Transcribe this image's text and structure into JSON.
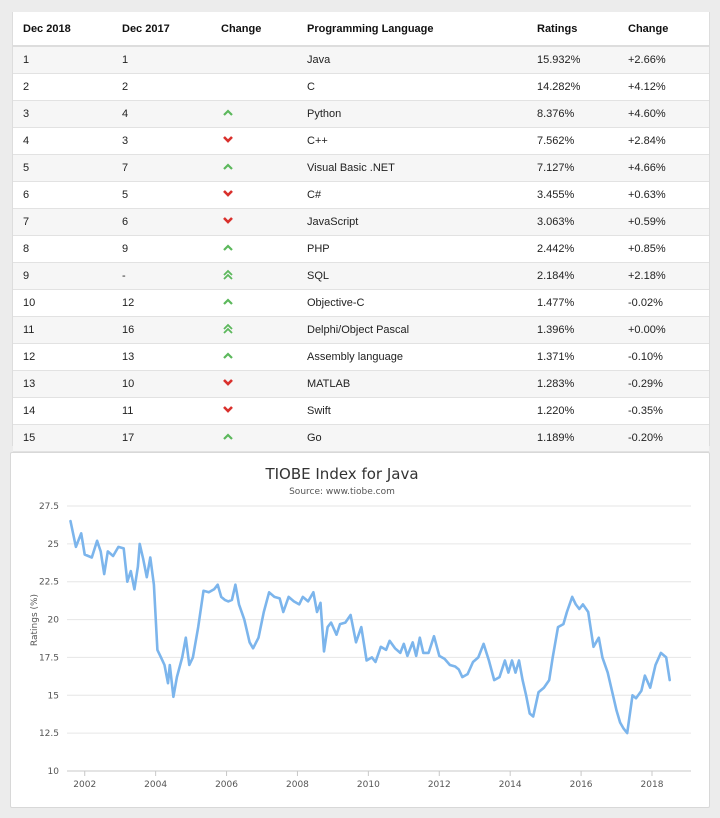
{
  "table": {
    "headers": [
      "Dec 2018",
      "Dec 2017",
      "Change",
      "Programming Language",
      "Ratings",
      "Change"
    ],
    "rows": [
      {
        "rank_2018": "1",
        "rank_2017": "1",
        "trend": "none",
        "language": "Java",
        "rating": "15.932%",
        "change": "+2.66%"
      },
      {
        "rank_2018": "2",
        "rank_2017": "2",
        "trend": "none",
        "language": "C",
        "rating": "14.282%",
        "change": "+4.12%"
      },
      {
        "rank_2018": "3",
        "rank_2017": "4",
        "trend": "up",
        "language": "Python",
        "rating": "8.376%",
        "change": "+4.60%"
      },
      {
        "rank_2018": "4",
        "rank_2017": "3",
        "trend": "down",
        "language": "C++",
        "rating": "7.562%",
        "change": "+2.84%"
      },
      {
        "rank_2018": "5",
        "rank_2017": "7",
        "trend": "up",
        "language": "Visual Basic .NET",
        "rating": "7.127%",
        "change": "+4.66%"
      },
      {
        "rank_2018": "6",
        "rank_2017": "5",
        "trend": "down",
        "language": "C#",
        "rating": "3.455%",
        "change": "+0.63%"
      },
      {
        "rank_2018": "7",
        "rank_2017": "6",
        "trend": "down",
        "language": "JavaScript",
        "rating": "3.063%",
        "change": "+0.59%"
      },
      {
        "rank_2018": "8",
        "rank_2017": "9",
        "trend": "up",
        "language": "PHP",
        "rating": "2.442%",
        "change": "+0.85%"
      },
      {
        "rank_2018": "9",
        "rank_2017": "-",
        "trend": "double-up",
        "language": "SQL",
        "rating": "2.184%",
        "change": "+2.18%"
      },
      {
        "rank_2018": "10",
        "rank_2017": "12",
        "trend": "up",
        "language": "Objective-C",
        "rating": "1.477%",
        "change": "-0.02%"
      },
      {
        "rank_2018": "11",
        "rank_2017": "16",
        "trend": "double-up",
        "language": "Delphi/Object Pascal",
        "rating": "1.396%",
        "change": "+0.00%"
      },
      {
        "rank_2018": "12",
        "rank_2017": "13",
        "trend": "up",
        "language": "Assembly language",
        "rating": "1.371%",
        "change": "-0.10%"
      },
      {
        "rank_2018": "13",
        "rank_2017": "10",
        "trend": "down",
        "language": "MATLAB",
        "rating": "1.283%",
        "change": "-0.29%"
      },
      {
        "rank_2018": "14",
        "rank_2017": "11",
        "trend": "down",
        "language": "Swift",
        "rating": "1.220%",
        "change": "-0.35%"
      },
      {
        "rank_2018": "15",
        "rank_2017": "17",
        "trend": "up",
        "language": "Go",
        "rating": "1.189%",
        "change": "-0.20%"
      }
    ]
  },
  "icons": {
    "up": "chevron-up-icon",
    "down": "chevron-down-icon",
    "double-up": "double-chevron-up-icon"
  },
  "colors": {
    "up": "#5cb85c",
    "down": "#d9302c",
    "line": "#7cb5ec"
  },
  "chart_data": {
    "type": "line",
    "title": "TIOBE Index for Java",
    "subtitle": "Source: www.tiobe.com",
    "xlabel": "",
    "ylabel": "Ratings (%)",
    "xlim": [
      2001.5,
      2019.1
    ],
    "ylim": [
      10,
      27.5
    ],
    "x_ticks": [
      "2002",
      "2004",
      "2006",
      "2008",
      "2010",
      "2012",
      "2014",
      "2016",
      "2018"
    ],
    "y_ticks": [
      "10",
      "12.5",
      "15",
      "17.5",
      "20",
      "22.5",
      "25",
      "27.5"
    ],
    "grid": true,
    "series": [
      {
        "name": "Java",
        "points": [
          [
            2001.6,
            26.5
          ],
          [
            2001.75,
            24.8
          ],
          [
            2001.9,
            25.7
          ],
          [
            2002.0,
            24.3
          ],
          [
            2002.2,
            24.1
          ],
          [
            2002.35,
            25.2
          ],
          [
            2002.45,
            24.5
          ],
          [
            2002.55,
            23.0
          ],
          [
            2002.65,
            24.5
          ],
          [
            2002.8,
            24.2
          ],
          [
            2002.95,
            24.8
          ],
          [
            2003.1,
            24.7
          ],
          [
            2003.2,
            22.5
          ],
          [
            2003.3,
            23.2
          ],
          [
            2003.4,
            22.0
          ],
          [
            2003.5,
            23.5
          ],
          [
            2003.55,
            25.0
          ],
          [
            2003.65,
            24.0
          ],
          [
            2003.75,
            22.8
          ],
          [
            2003.85,
            24.1
          ],
          [
            2003.95,
            22.3
          ],
          [
            2004.05,
            18.0
          ],
          [
            2004.15,
            17.5
          ],
          [
            2004.25,
            17.0
          ],
          [
            2004.35,
            15.8
          ],
          [
            2004.4,
            17.0
          ],
          [
            2004.5,
            14.9
          ],
          [
            2004.6,
            16.2
          ],
          [
            2004.75,
            17.5
          ],
          [
            2004.85,
            18.8
          ],
          [
            2004.95,
            17.0
          ],
          [
            2005.05,
            17.5
          ],
          [
            2005.2,
            19.5
          ],
          [
            2005.35,
            21.9
          ],
          [
            2005.5,
            21.8
          ],
          [
            2005.65,
            22.0
          ],
          [
            2005.75,
            22.3
          ],
          [
            2005.85,
            21.5
          ],
          [
            2005.95,
            21.3
          ],
          [
            2006.05,
            21.2
          ],
          [
            2006.15,
            21.3
          ],
          [
            2006.25,
            22.3
          ],
          [
            2006.35,
            21.0
          ],
          [
            2006.5,
            20.0
          ],
          [
            2006.65,
            18.5
          ],
          [
            2006.75,
            18.1
          ],
          [
            2006.9,
            18.8
          ],
          [
            2007.05,
            20.5
          ],
          [
            2007.2,
            21.8
          ],
          [
            2007.35,
            21.5
          ],
          [
            2007.5,
            21.4
          ],
          [
            2007.6,
            20.5
          ],
          [
            2007.75,
            21.5
          ],
          [
            2007.9,
            21.2
          ],
          [
            2008.05,
            21.0
          ],
          [
            2008.15,
            21.5
          ],
          [
            2008.3,
            21.2
          ],
          [
            2008.45,
            21.8
          ],
          [
            2008.55,
            20.5
          ],
          [
            2008.65,
            21.1
          ],
          [
            2008.75,
            17.9
          ],
          [
            2008.85,
            19.5
          ],
          [
            2008.95,
            19.8
          ],
          [
            2009.1,
            19.0
          ],
          [
            2009.2,
            19.7
          ],
          [
            2009.35,
            19.8
          ],
          [
            2009.5,
            20.3
          ],
          [
            2009.65,
            18.5
          ],
          [
            2009.8,
            19.5
          ],
          [
            2009.95,
            17.3
          ],
          [
            2010.1,
            17.5
          ],
          [
            2010.2,
            17.2
          ],
          [
            2010.35,
            18.2
          ],
          [
            2010.5,
            18.0
          ],
          [
            2010.6,
            18.6
          ],
          [
            2010.75,
            18.1
          ],
          [
            2010.9,
            17.8
          ],
          [
            2011.0,
            18.4
          ],
          [
            2011.1,
            17.6
          ],
          [
            2011.25,
            18.5
          ],
          [
            2011.35,
            17.6
          ],
          [
            2011.45,
            18.8
          ],
          [
            2011.55,
            17.8
          ],
          [
            2011.7,
            17.8
          ],
          [
            2011.85,
            18.9
          ],
          [
            2012.0,
            17.6
          ],
          [
            2012.15,
            17.4
          ],
          [
            2012.3,
            17.0
          ],
          [
            2012.45,
            16.9
          ],
          [
            2012.55,
            16.7
          ],
          [
            2012.65,
            16.2
          ],
          [
            2012.8,
            16.4
          ],
          [
            2012.95,
            17.2
          ],
          [
            2013.1,
            17.5
          ],
          [
            2013.25,
            18.4
          ],
          [
            2013.4,
            17.3
          ],
          [
            2013.55,
            16.0
          ],
          [
            2013.7,
            16.2
          ],
          [
            2013.85,
            17.3
          ],
          [
            2013.95,
            16.5
          ],
          [
            2014.05,
            17.3
          ],
          [
            2014.15,
            16.5
          ],
          [
            2014.25,
            17.3
          ],
          [
            2014.35,
            16.0
          ],
          [
            2014.45,
            15.0
          ],
          [
            2014.55,
            13.8
          ],
          [
            2014.65,
            13.6
          ],
          [
            2014.8,
            15.2
          ],
          [
            2014.95,
            15.5
          ],
          [
            2015.1,
            16.0
          ],
          [
            2015.2,
            17.5
          ],
          [
            2015.35,
            19.5
          ],
          [
            2015.5,
            19.7
          ],
          [
            2015.6,
            20.5
          ],
          [
            2015.75,
            21.5
          ],
          [
            2015.85,
            21.0
          ],
          [
            2015.95,
            20.7
          ],
          [
            2016.05,
            21.0
          ],
          [
            2016.2,
            20.5
          ],
          [
            2016.35,
            18.2
          ],
          [
            2016.5,
            18.8
          ],
          [
            2016.6,
            17.5
          ],
          [
            2016.75,
            16.5
          ],
          [
            2016.9,
            15.0
          ],
          [
            2017.0,
            14.0
          ],
          [
            2017.1,
            13.2
          ],
          [
            2017.2,
            12.8
          ],
          [
            2017.3,
            12.5
          ],
          [
            2017.45,
            15.0
          ],
          [
            2017.55,
            14.8
          ],
          [
            2017.7,
            15.3
          ],
          [
            2017.8,
            16.3
          ],
          [
            2017.95,
            15.5
          ],
          [
            2018.1,
            17.0
          ],
          [
            2018.25,
            17.8
          ],
          [
            2018.4,
            17.5
          ],
          [
            2018.5,
            16.0
          ]
        ]
      }
    ]
  }
}
